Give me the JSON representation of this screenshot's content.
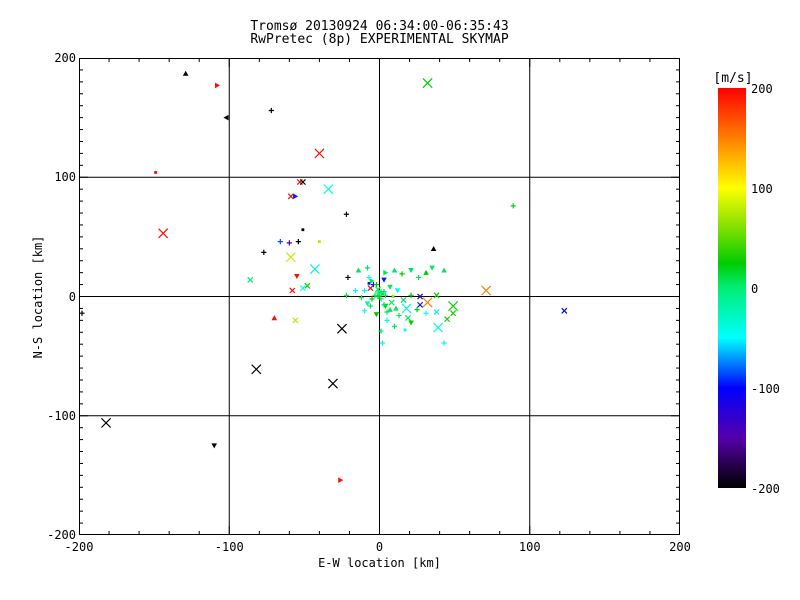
{
  "chart_data": {
    "type": "scatter",
    "title": "Tromsø 20130924 06:34:00-06:35:43",
    "subtitle": "RwPretec (8p) EXPERIMENTAL SKYMAP",
    "xlabel": "E-W location [km]",
    "ylabel": "N-S location [km]",
    "xlim": [
      -200,
      200
    ],
    "ylim": [
      -200,
      200
    ],
    "x_ticks": [
      -200,
      -100,
      0,
      100,
      200
    ],
    "y_ticks": [
      200,
      100,
      0,
      -100,
      -200
    ],
    "x_minor_tick": 20,
    "y_minor_tick": 10,
    "major_tick": 100,
    "grid": true,
    "grid_values": [
      -100,
      0,
      100
    ],
    "background": "#ffffff",
    "axis_color": "#000000",
    "colorbar": {
      "label": "[m/s]",
      "min": -200,
      "max": 200,
      "ticks": [
        200,
        100,
        0,
        -100,
        -200
      ],
      "stops": [
        {
          "v": 200,
          "c": "#ff0000"
        },
        {
          "v": 150,
          "c": "#ff7f00"
        },
        {
          "v": 100,
          "c": "#ffff00"
        },
        {
          "v": 60,
          "c": "#80e000"
        },
        {
          "v": 25,
          "c": "#00cc00"
        },
        {
          "v": 0,
          "c": "#00ee77"
        },
        {
          "v": -50,
          "c": "#00ffff"
        },
        {
          "v": -100,
          "c": "#0000ff"
        },
        {
          "v": -150,
          "c": "#5500aa"
        },
        {
          "v": -200,
          "c": "#000000"
        }
      ]
    },
    "marker_types": {
      "p": "plus",
      "x": "cross",
      "t": "triangle-up",
      "d": "triangle-down",
      "l": "triangle-left",
      "r": "triangle-right",
      "o": "dot"
    },
    "points": [
      {
        "x": -129,
        "y": 187,
        "v": -200,
        "t": "t",
        "s": 1
      },
      {
        "x": -108,
        "y": 177,
        "v": 195,
        "t": "r",
        "s": 1
      },
      {
        "x": -102,
        "y": 150,
        "v": -200,
        "t": "l",
        "s": 1
      },
      {
        "x": -72,
        "y": 156,
        "v": -200,
        "t": "p",
        "s": 1
      },
      {
        "x": -40,
        "y": 120,
        "v": 195,
        "t": "x",
        "s": 2
      },
      {
        "x": -149,
        "y": 104,
        "v": 195,
        "t": "o",
        "s": 1
      },
      {
        "x": -53,
        "y": 96,
        "v": 195,
        "t": "x",
        "s": 1
      },
      {
        "x": -51,
        "y": 96,
        "v": -200,
        "t": "x",
        "s": 1
      },
      {
        "x": -34,
        "y": 90,
        "v": -45,
        "t": "x",
        "s": 2
      },
      {
        "x": -59,
        "y": 84,
        "v": 195,
        "t": "x",
        "s": 1
      },
      {
        "x": -56,
        "y": 84,
        "v": -95,
        "t": "r",
        "s": 1
      },
      {
        "x": 32,
        "y": 179,
        "v": 25,
        "t": "x",
        "s": 2
      },
      {
        "x": -22,
        "y": 69,
        "v": -200,
        "t": "p",
        "s": 1
      },
      {
        "x": 89,
        "y": 76,
        "v": 20,
        "t": "p",
        "s": 1
      },
      {
        "x": -51,
        "y": 56,
        "v": -200,
        "t": "o",
        "s": 1
      },
      {
        "x": -144,
        "y": 53,
        "v": 195,
        "t": "x",
        "s": 2
      },
      {
        "x": -66,
        "y": 46,
        "v": -85,
        "t": "p",
        "s": 1
      },
      {
        "x": -60,
        "y": 45,
        "v": -150,
        "t": "p",
        "s": 1
      },
      {
        "x": -54,
        "y": 46,
        "v": -200,
        "t": "p",
        "s": 1
      },
      {
        "x": -40,
        "y": 46,
        "v": 75,
        "t": "o",
        "s": 1
      },
      {
        "x": -77,
        "y": 37,
        "v": -200,
        "t": "p",
        "s": 1
      },
      {
        "x": -59,
        "y": 33,
        "v": 80,
        "t": "x",
        "s": 2
      },
      {
        "x": 36,
        "y": 40,
        "v": -200,
        "t": "t",
        "s": 1
      },
      {
        "x": -43,
        "y": 23,
        "v": -35,
        "t": "x",
        "s": 2
      },
      {
        "x": -86,
        "y": 14,
        "v": 0,
        "t": "x",
        "s": 1
      },
      {
        "x": -55,
        "y": 17,
        "v": 195,
        "t": "d",
        "s": 1
      },
      {
        "x": -58,
        "y": 5,
        "v": 195,
        "t": "x",
        "s": 1
      },
      {
        "x": -51,
        "y": 7,
        "v": -45,
        "t": "x",
        "s": 1
      },
      {
        "x": -48,
        "y": 9,
        "v": 30,
        "t": "x",
        "s": 1
      },
      {
        "x": 71,
        "y": 5,
        "v": 150,
        "t": "x",
        "s": 2
      },
      {
        "x": 123,
        "y": -12,
        "v": -105,
        "t": "x",
        "s": 1
      },
      {
        "x": -198,
        "y": -14,
        "v": -200,
        "t": "p",
        "s": 1
      },
      {
        "x": -70,
        "y": -18,
        "v": 195,
        "t": "t",
        "s": 1
      },
      {
        "x": -56,
        "y": -20,
        "v": 75,
        "t": "x",
        "s": 1
      },
      {
        "x": -25,
        "y": -27,
        "v": -200,
        "t": "x",
        "s": 2
      },
      {
        "x": -82,
        "y": -61,
        "v": -200,
        "t": "x",
        "s": 2
      },
      {
        "x": -31,
        "y": -73,
        "v": -200,
        "t": "x",
        "s": 2
      },
      {
        "x": -182,
        "y": -106,
        "v": -200,
        "t": "x",
        "s": 2
      },
      {
        "x": -110,
        "y": -125,
        "v": -200,
        "t": "d",
        "s": 1
      },
      {
        "x": -26,
        "y": -154,
        "v": 195,
        "t": "r",
        "s": 1
      },
      {
        "x": -21,
        "y": 16,
        "v": -200,
        "t": "p",
        "s": 1
      },
      {
        "x": -14,
        "y": 22,
        "v": 5,
        "t": "t",
        "s": 1
      },
      {
        "x": -8,
        "y": 24,
        "v": 5,
        "t": "p",
        "s": 1
      },
      {
        "x": 3,
        "y": 14,
        "v": -95,
        "t": "d",
        "s": 1
      },
      {
        "x": -6,
        "y": 7,
        "v": 195,
        "t": "x",
        "s": 1
      },
      {
        "x": -4,
        "y": 10,
        "v": -115,
        "t": "p",
        "s": 1
      },
      {
        "x": -10,
        "y": 5,
        "v": -45,
        "t": "p",
        "s": 1
      },
      {
        "x": -12,
        "y": -1,
        "v": 5,
        "t": "p",
        "s": 1
      },
      {
        "x": -16,
        "y": 5,
        "v": -45,
        "t": "p",
        "s": 1
      },
      {
        "x": -22,
        "y": 1,
        "v": 5,
        "t": "p",
        "s": 1
      },
      {
        "x": -2,
        "y": 10,
        "v": 25,
        "t": "p",
        "s": 1
      },
      {
        "x": -1,
        "y": 6,
        "v": 5,
        "t": "x",
        "s": 1
      },
      {
        "x": 1,
        "y": 4,
        "v": 5,
        "t": "p",
        "s": 1
      },
      {
        "x": 2,
        "y": 2,
        "v": 5,
        "t": "o",
        "s": 1
      },
      {
        "x": -1,
        "y": 3,
        "v": 0,
        "t": "p",
        "s": 1
      },
      {
        "x": 0,
        "y": 1,
        "v": 5,
        "t": "p",
        "s": 1
      },
      {
        "x": 3,
        "y": 4,
        "v": 10,
        "t": "p",
        "s": 1
      },
      {
        "x": 4,
        "y": 1,
        "v": 0,
        "t": "p",
        "s": 1
      },
      {
        "x": 1,
        "y": -2,
        "v": 5,
        "t": "p",
        "s": 1
      },
      {
        "x": -1,
        "y": 0,
        "v": 20,
        "t": "p",
        "s": 1
      },
      {
        "x": 7,
        "y": 8,
        "v": 5,
        "t": "d",
        "s": 1
      },
      {
        "x": 9,
        "y": 0,
        "v": 65,
        "t": "o",
        "s": 1
      },
      {
        "x": 12,
        "y": 5,
        "v": -45,
        "t": "d",
        "s": 1
      },
      {
        "x": 8,
        "y": -5,
        "v": 5,
        "t": "x",
        "s": 1
      },
      {
        "x": 4,
        "y": -8,
        "v": 25,
        "t": "d",
        "s": 1
      },
      {
        "x": -6,
        "y": -8,
        "v": 5,
        "t": "p",
        "s": 1
      },
      {
        "x": -10,
        "y": -12,
        "v": -45,
        "t": "p",
        "s": 1
      },
      {
        "x": -2,
        "y": -15,
        "v": 25,
        "t": "d",
        "s": 1
      },
      {
        "x": 5,
        "y": -13,
        "v": 5,
        "t": "p",
        "s": 1
      },
      {
        "x": 11,
        "y": -10,
        "v": 5,
        "t": "t",
        "s": 1
      },
      {
        "x": 16,
        "y": -3,
        "v": 5,
        "t": "x",
        "s": 1
      },
      {
        "x": 18,
        "y": -10,
        "v": -30,
        "t": "x",
        "s": 2
      },
      {
        "x": 21,
        "y": 1,
        "v": 25,
        "t": "p",
        "s": 1
      },
      {
        "x": 27,
        "y": 0,
        "v": -125,
        "t": "x",
        "s": 1
      },
      {
        "x": 32,
        "y": -5,
        "v": 150,
        "t": "x",
        "s": 2
      },
      {
        "x": 27,
        "y": -7,
        "v": -95,
        "t": "x",
        "s": 1
      },
      {
        "x": 38,
        "y": 1,
        "v": 30,
        "t": "x",
        "s": 1
      },
      {
        "x": 38,
        "y": -13,
        "v": -45,
        "t": "x",
        "s": 1
      },
      {
        "x": 49,
        "y": -8,
        "v": 30,
        "t": "x",
        "s": 2
      },
      {
        "x": 49,
        "y": -14,
        "v": 30,
        "t": "x",
        "s": 1
      },
      {
        "x": 45,
        "y": -19,
        "v": 30,
        "t": "x",
        "s": 1
      },
      {
        "x": 31,
        "y": -14,
        "v": -45,
        "t": "p",
        "s": 1
      },
      {
        "x": 43,
        "y": -39,
        "v": -45,
        "t": "p",
        "s": 1
      },
      {
        "x": 2,
        "y": -39,
        "v": -45,
        "t": "p",
        "s": 1
      },
      {
        "x": 39,
        "y": -26,
        "v": -45,
        "t": "x",
        "s": 2
      },
      {
        "x": 3,
        "y": -7,
        "v": 5,
        "t": "p",
        "s": 1
      },
      {
        "x": 7,
        "y": -11,
        "v": 5,
        "t": "t",
        "s": 1
      },
      {
        "x": 13,
        "y": -16,
        "v": 5,
        "t": "p",
        "s": 1
      },
      {
        "x": 19,
        "y": -18,
        "v": 5,
        "t": "x",
        "s": 1
      },
      {
        "x": 25,
        "y": -11,
        "v": 25,
        "t": "p",
        "s": 1
      },
      {
        "x": 5,
        "y": -20,
        "v": -45,
        "t": "p",
        "s": 1
      },
      {
        "x": 10,
        "y": -25,
        "v": 5,
        "t": "p",
        "s": 1
      },
      {
        "x": 17,
        "y": -28,
        "v": -45,
        "t": "o",
        "s": 1
      },
      {
        "x": 1,
        "y": -29,
        "v": 5,
        "t": "p",
        "s": 1
      },
      {
        "x": 21,
        "y": -22,
        "v": 25,
        "t": "d",
        "s": 1
      },
      {
        "x": -7,
        "y": 16,
        "v": -45,
        "t": "p",
        "s": 1
      },
      {
        "x": -5,
        "y": 13,
        "v": 5,
        "t": "r",
        "s": 1
      },
      {
        "x": -7,
        "y": 11,
        "v": -95,
        "t": "o",
        "s": 1
      },
      {
        "x": -3,
        "y": 1,
        "v": 5,
        "t": "p",
        "s": 1
      },
      {
        "x": -5,
        "y": -2,
        "v": 25,
        "t": "p",
        "s": 1
      },
      {
        "x": -8,
        "y": -6,
        "v": -20,
        "t": "d",
        "s": 1
      },
      {
        "x": 4,
        "y": 20,
        "v": 5,
        "t": "r",
        "s": 1
      },
      {
        "x": 10,
        "y": 22,
        "v": 5,
        "t": "t",
        "s": 1
      },
      {
        "x": 15,
        "y": 19,
        "v": 25,
        "t": "p",
        "s": 1
      },
      {
        "x": 21,
        "y": 22,
        "v": 5,
        "t": "d",
        "s": 1
      },
      {
        "x": 26,
        "y": 16,
        "v": 5,
        "t": "p",
        "s": 1
      },
      {
        "x": 31,
        "y": 20,
        "v": 25,
        "t": "t",
        "s": 1
      },
      {
        "x": 35,
        "y": 24,
        "v": 5,
        "t": "d",
        "s": 1
      },
      {
        "x": 43,
        "y": 22,
        "v": 5,
        "t": "t",
        "s": 1
      }
    ]
  }
}
